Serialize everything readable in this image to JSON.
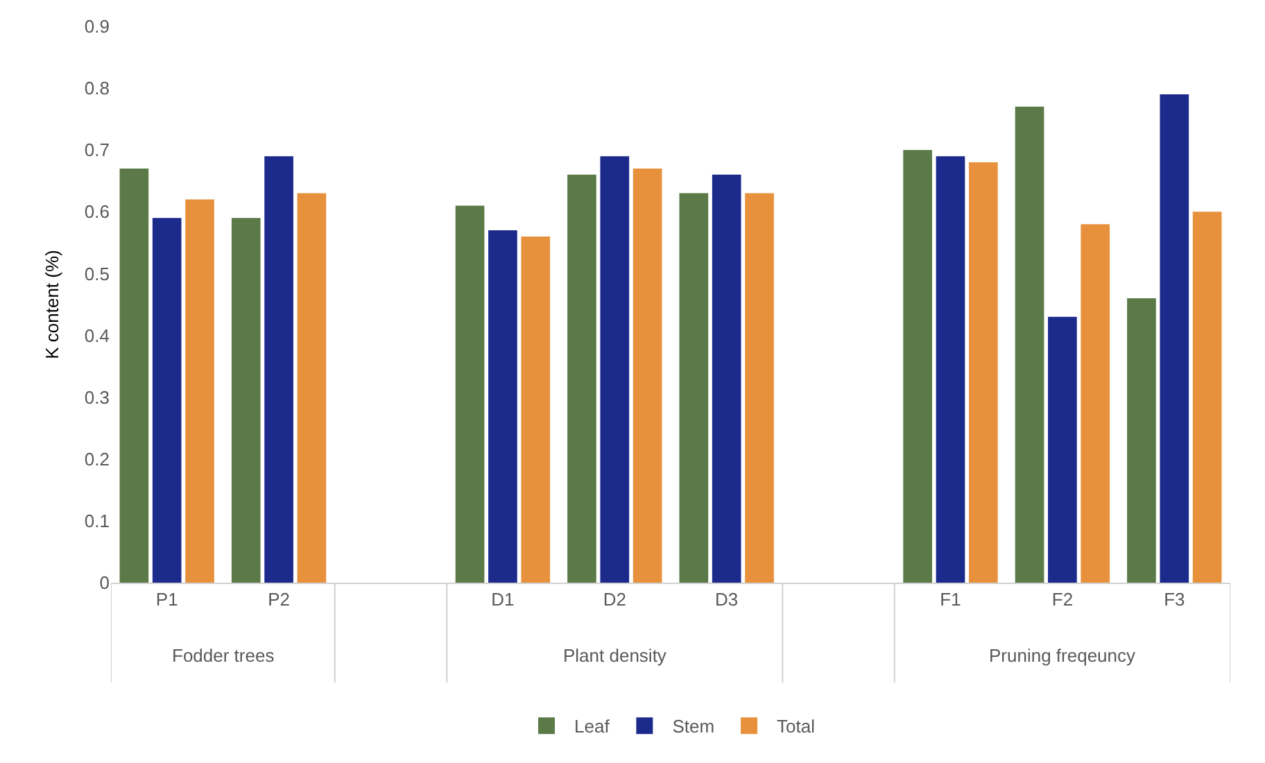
{
  "chart_data": {
    "type": "bar",
    "ylabel": "K content (%)",
    "categories": [
      "P1",
      "P2",
      null,
      "D1",
      "D2",
      "D3",
      null,
      "F1",
      "F2",
      "F3"
    ],
    "series": [
      {
        "name": "Leaf",
        "color": "#5b7a47",
        "values": [
          0.67,
          0.59,
          null,
          0.61,
          0.66,
          0.63,
          null,
          0.7,
          0.77,
          0.46
        ]
      },
      {
        "name": "Stem",
        "color": "#1c2a8c",
        "values": [
          0.59,
          0.69,
          null,
          0.57,
          0.69,
          0.66,
          null,
          0.69,
          0.43,
          0.79
        ]
      },
      {
        "name": "Total",
        "color": "#e8913c",
        "values": [
          0.62,
          0.63,
          null,
          0.56,
          0.67,
          0.63,
          null,
          0.68,
          0.58,
          0.6
        ]
      }
    ],
    "annotations": [
      "Fodder trees",
      "Plant density",
      "Pruning freqeuncy"
    ],
    "ylim": [
      0,
      0.9
    ],
    "yticks": [
      {
        "value": 0,
        "label": "0"
      },
      0.1,
      0.2,
      0.3,
      0.4,
      0.5,
      0.6,
      0.7,
      0.8,
      0.9
    ],
    "legend": "bottom"
  }
}
